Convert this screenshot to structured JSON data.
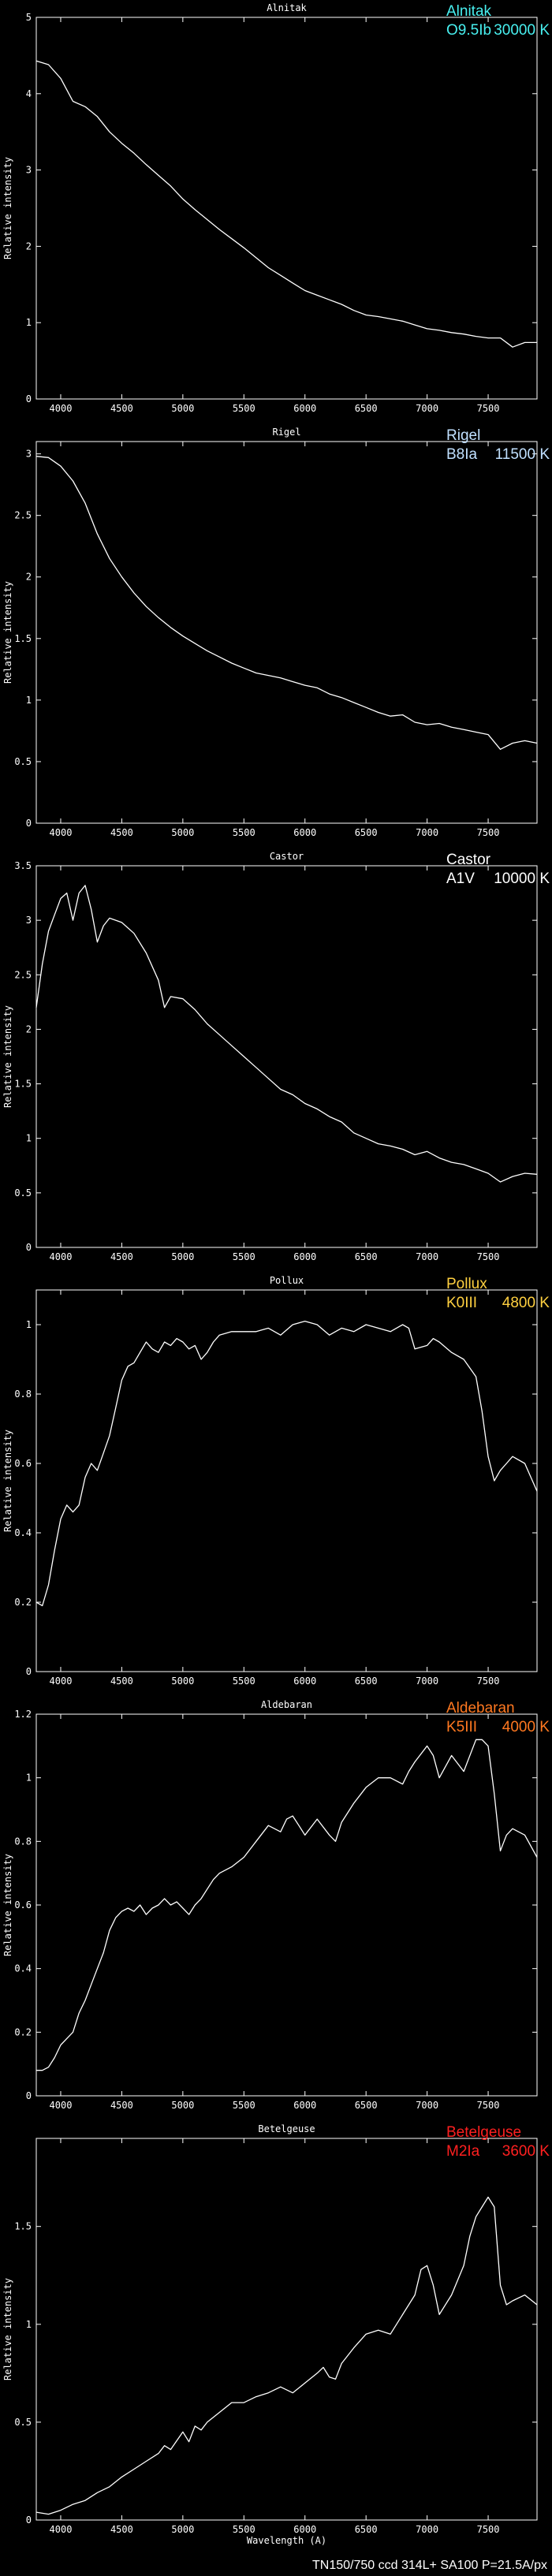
{
  "footer": "TN150/750 ccd 314L+ SA100 P=21.5A/px",
  "chart_data": [
    {
      "type": "line",
      "title": "Alnitak",
      "star": {
        "name": "Alnitak",
        "spectral_type": "O9.5Ib",
        "temperature": "30000 K",
        "color": "#48f0f0"
      },
      "xlabel": "",
      "ylabel": "Relative intensity",
      "xlim": [
        3800,
        7900
      ],
      "ylim": [
        0,
        5
      ],
      "xticks": [
        4000,
        4500,
        5000,
        5500,
        6000,
        6500,
        7000,
        7500
      ],
      "yticks": [
        0,
        1,
        2,
        3,
        4,
        5
      ],
      "grid": false,
      "series": [
        {
          "x": [
            3800,
            3900,
            4000,
            4100,
            4200,
            4300,
            4400,
            4500,
            4600,
            4700,
            4800,
            4900,
            5000,
            5100,
            5200,
            5300,
            5400,
            5500,
            5600,
            5700,
            5800,
            5900,
            6000,
            6100,
            6200,
            6300,
            6400,
            6500,
            6600,
            6700,
            6800,
            6900,
            7000,
            7100,
            7200,
            7300,
            7400,
            7500,
            7600,
            7700,
            7800,
            7900
          ],
          "y": [
            4.43,
            4.38,
            4.2,
            3.9,
            3.83,
            3.7,
            3.5,
            3.35,
            3.22,
            3.07,
            2.93,
            2.79,
            2.62,
            2.48,
            2.35,
            2.22,
            2.1,
            1.98,
            1.85,
            1.72,
            1.62,
            1.52,
            1.42,
            1.36,
            1.3,
            1.24,
            1.16,
            1.1,
            1.08,
            1.05,
            1.02,
            0.97,
            0.92,
            0.9,
            0.87,
            0.85,
            0.82,
            0.8,
            0.8,
            0.68,
            0.74,
            0.74
          ]
        }
      ]
    },
    {
      "type": "line",
      "title": "Rigel",
      "star": {
        "name": "Rigel",
        "spectral_type": "B8Ia",
        "temperature": "11500 K",
        "color": "#c0e0ff"
      },
      "xlabel": "",
      "ylabel": "Relative intensity",
      "xlim": [
        3800,
        7900
      ],
      "ylim": [
        0,
        3.1
      ],
      "xticks": [
        4000,
        4500,
        5000,
        5500,
        6000,
        6500,
        7000,
        7500
      ],
      "yticks": [
        0,
        0.5,
        1,
        1.5,
        2,
        2.5,
        3
      ],
      "grid": false,
      "series": [
        {
          "x": [
            3800,
            3900,
            4000,
            4100,
            4200,
            4300,
            4400,
            4500,
            4600,
            4700,
            4800,
            4900,
            5000,
            5100,
            5200,
            5300,
            5400,
            5500,
            5600,
            5700,
            5800,
            5900,
            6000,
            6100,
            6200,
            6300,
            6400,
            6500,
            6600,
            6700,
            6800,
            6900,
            7000,
            7100,
            7200,
            7300,
            7400,
            7500,
            7600,
            7700,
            7800,
            7900
          ],
          "y": [
            2.98,
            2.97,
            2.9,
            2.78,
            2.6,
            2.35,
            2.15,
            2.0,
            1.87,
            1.76,
            1.67,
            1.59,
            1.52,
            1.46,
            1.4,
            1.35,
            1.3,
            1.26,
            1.22,
            1.2,
            1.18,
            1.15,
            1.12,
            1.1,
            1.05,
            1.02,
            0.98,
            0.94,
            0.9,
            0.87,
            0.88,
            0.82,
            0.8,
            0.81,
            0.78,
            0.76,
            0.74,
            0.72,
            0.6,
            0.65,
            0.67,
            0.65
          ]
        }
      ]
    },
    {
      "type": "line",
      "title": "Castor",
      "star": {
        "name": "Castor",
        "spectral_type": "A1V",
        "temperature": "10000 K",
        "color": "#ffffff"
      },
      "xlabel": "",
      "ylabel": "Relative intensity",
      "xlim": [
        3800,
        7900
      ],
      "ylim": [
        0,
        3.5
      ],
      "xticks": [
        4000,
        4500,
        5000,
        5500,
        6000,
        6500,
        7000,
        7500
      ],
      "yticks": [
        0,
        0.5,
        1,
        1.5,
        2,
        2.5,
        3,
        3.5
      ],
      "grid": false,
      "series": [
        {
          "x": [
            3800,
            3850,
            3900,
            3950,
            4000,
            4050,
            4100,
            4150,
            4200,
            4250,
            4300,
            4350,
            4400,
            4500,
            4600,
            4700,
            4800,
            4850,
            4900,
            5000,
            5100,
            5200,
            5300,
            5400,
            5500,
            5600,
            5700,
            5800,
            5900,
            6000,
            6100,
            6200,
            6300,
            6400,
            6500,
            6600,
            6700,
            6800,
            6900,
            7000,
            7100,
            7200,
            7300,
            7400,
            7500,
            7600,
            7700,
            7800,
            7900
          ],
          "y": [
            2.2,
            2.6,
            2.9,
            3.05,
            3.2,
            3.25,
            3.0,
            3.25,
            3.32,
            3.1,
            2.8,
            2.95,
            3.02,
            2.98,
            2.88,
            2.7,
            2.45,
            2.2,
            2.3,
            2.28,
            2.18,
            2.05,
            1.95,
            1.85,
            1.75,
            1.65,
            1.55,
            1.45,
            1.4,
            1.32,
            1.27,
            1.2,
            1.15,
            1.05,
            1.0,
            0.95,
            0.93,
            0.9,
            0.85,
            0.88,
            0.82,
            0.78,
            0.76,
            0.72,
            0.68,
            0.6,
            0.65,
            0.68,
            0.67
          ]
        }
      ]
    },
    {
      "type": "line",
      "title": "Pollux",
      "star": {
        "name": "Pollux",
        "spectral_type": "K0III",
        "temperature": "4800 K",
        "color": "#ffd040"
      },
      "xlabel": "",
      "ylabel": "Relative intensity",
      "xlim": [
        3800,
        7900
      ],
      "ylim": [
        0,
        1.1
      ],
      "xticks": [
        4000,
        4500,
        5000,
        5500,
        6000,
        6500,
        7000,
        7500
      ],
      "yticks": [
        0,
        0.2,
        0.4,
        0.6,
        0.8,
        1
      ],
      "grid": false,
      "series": [
        {
          "x": [
            3800,
            3850,
            3900,
            3950,
            4000,
            4050,
            4100,
            4150,
            4200,
            4250,
            4300,
            4350,
            4400,
            4450,
            4500,
            4550,
            4600,
            4650,
            4700,
            4750,
            4800,
            4850,
            4900,
            4950,
            5000,
            5050,
            5100,
            5150,
            5200,
            5250,
            5300,
            5400,
            5500,
            5600,
            5700,
            5800,
            5900,
            6000,
            6100,
            6200,
            6300,
            6400,
            6500,
            6600,
            6700,
            6800,
            6850,
            6900,
            7000,
            7050,
            7100,
            7200,
            7300,
            7400,
            7450,
            7500,
            7550,
            7600,
            7650,
            7700,
            7800,
            7900
          ],
          "y": [
            0.2,
            0.19,
            0.25,
            0.35,
            0.44,
            0.48,
            0.46,
            0.48,
            0.56,
            0.6,
            0.58,
            0.63,
            0.68,
            0.76,
            0.84,
            0.88,
            0.89,
            0.92,
            0.95,
            0.93,
            0.92,
            0.95,
            0.94,
            0.96,
            0.95,
            0.93,
            0.94,
            0.9,
            0.92,
            0.95,
            0.97,
            0.98,
            0.98,
            0.98,
            0.99,
            0.97,
            1.0,
            1.01,
            1.0,
            0.97,
            0.99,
            0.98,
            1.0,
            0.99,
            0.98,
            1.0,
            0.99,
            0.93,
            0.94,
            0.96,
            0.95,
            0.92,
            0.9,
            0.85,
            0.75,
            0.62,
            0.55,
            0.58,
            0.6,
            0.62,
            0.6,
            0.52
          ]
        }
      ]
    },
    {
      "type": "line",
      "title": "Aldebaran",
      "star": {
        "name": "Aldebaran",
        "spectral_type": "K5III",
        "temperature": "4000 K",
        "color": "#ff7820"
      },
      "xlabel": "",
      "ylabel": "Relative intensity",
      "xlim": [
        3800,
        7900
      ],
      "ylim": [
        0,
        1.2
      ],
      "xticks": [
        4000,
        4500,
        5000,
        5500,
        6000,
        6500,
        7000,
        7500
      ],
      "yticks": [
        0,
        0.2,
        0.4,
        0.6,
        0.8,
        1,
        1.2
      ],
      "grid": false,
      "series": [
        {
          "x": [
            3800,
            3850,
            3900,
            3950,
            4000,
            4050,
            4100,
            4150,
            4200,
            4250,
            4300,
            4350,
            4400,
            4450,
            4500,
            4550,
            4600,
            4650,
            4700,
            4750,
            4800,
            4850,
            4900,
            4950,
            5000,
            5050,
            5100,
            5150,
            5200,
            5250,
            5300,
            5400,
            5500,
            5600,
            5700,
            5800,
            5850,
            5900,
            5950,
            6000,
            6100,
            6200,
            6250,
            6300,
            6400,
            6500,
            6600,
            6700,
            6800,
            6850,
            6900,
            7000,
            7050,
            7100,
            7200,
            7300,
            7400,
            7450,
            7500,
            7550,
            7600,
            7650,
            7700,
            7800,
            7900
          ],
          "y": [
            0.08,
            0.08,
            0.09,
            0.12,
            0.16,
            0.18,
            0.2,
            0.26,
            0.3,
            0.35,
            0.4,
            0.45,
            0.52,
            0.56,
            0.58,
            0.59,
            0.58,
            0.6,
            0.57,
            0.59,
            0.6,
            0.62,
            0.6,
            0.61,
            0.59,
            0.57,
            0.6,
            0.62,
            0.65,
            0.68,
            0.7,
            0.72,
            0.75,
            0.8,
            0.85,
            0.83,
            0.87,
            0.88,
            0.85,
            0.82,
            0.87,
            0.82,
            0.8,
            0.86,
            0.92,
            0.97,
            1.0,
            1.0,
            0.98,
            1.02,
            1.05,
            1.1,
            1.07,
            1.0,
            1.07,
            1.02,
            1.12,
            1.12,
            1.1,
            0.95,
            0.77,
            0.82,
            0.84,
            0.82,
            0.75
          ]
        }
      ]
    },
    {
      "type": "line",
      "title": "Betelgeuse",
      "star": {
        "name": "Betelgeuse",
        "spectral_type": "M2Ia",
        "temperature": "3600 K",
        "color": "#ff2020"
      },
      "xlabel": "Wavelength (A)",
      "ylabel": "Relative intensity",
      "xlim": [
        3800,
        7900
      ],
      "ylim": [
        0,
        1.95
      ],
      "xticks": [
        4000,
        4500,
        5000,
        5500,
        6000,
        6500,
        7000,
        7500
      ],
      "yticks": [
        0,
        0.5,
        1,
        1.5
      ],
      "grid": false,
      "series": [
        {
          "x": [
            3800,
            3900,
            4000,
            4100,
            4200,
            4300,
            4400,
            4500,
            4600,
            4700,
            4800,
            4850,
            4900,
            5000,
            5050,
            5100,
            5150,
            5200,
            5300,
            5400,
            5500,
            5600,
            5700,
            5800,
            5900,
            6000,
            6100,
            6150,
            6200,
            6250,
            6300,
            6400,
            6500,
            6600,
            6700,
            6800,
            6900,
            6950,
            7000,
            7050,
            7100,
            7200,
            7300,
            7350,
            7400,
            7450,
            7500,
            7550,
            7600,
            7650,
            7700,
            7800,
            7900
          ],
          "y": [
            0.04,
            0.03,
            0.05,
            0.08,
            0.1,
            0.14,
            0.17,
            0.22,
            0.26,
            0.3,
            0.34,
            0.38,
            0.36,
            0.45,
            0.4,
            0.48,
            0.46,
            0.5,
            0.55,
            0.6,
            0.6,
            0.63,
            0.65,
            0.68,
            0.65,
            0.7,
            0.75,
            0.78,
            0.73,
            0.72,
            0.8,
            0.88,
            0.95,
            0.97,
            0.95,
            1.05,
            1.15,
            1.28,
            1.3,
            1.2,
            1.05,
            1.15,
            1.3,
            1.45,
            1.55,
            1.6,
            1.65,
            1.6,
            1.2,
            1.1,
            1.12,
            1.15,
            1.1
          ]
        }
      ]
    }
  ]
}
